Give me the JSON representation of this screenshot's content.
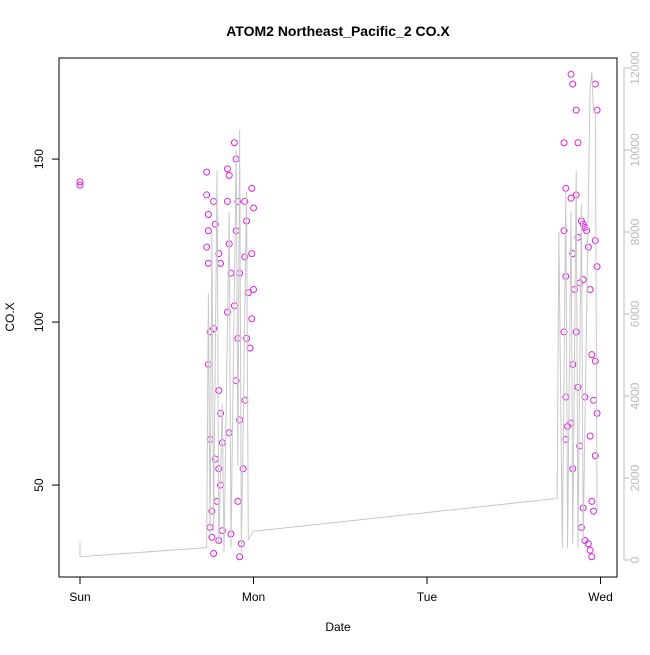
{
  "chart_data": {
    "type": "scatter",
    "title": "ATOM2 Northeast_Pacific_2 CO.X",
    "x_label": "Date",
    "y_label": "CO.X",
    "xlim": [
      -0.121,
      3.095
    ],
    "xticks": [
      {
        "value": 0,
        "label": "Sun"
      },
      {
        "value": 1,
        "label": "Mon"
      },
      {
        "value": 2,
        "label": "Tue"
      },
      {
        "value": 3,
        "label": "Wed"
      }
    ],
    "ylim": [
      21.8,
      181
    ],
    "yticks": [
      50,
      100,
      150
    ],
    "y2lim": [
      -415,
      12244
    ],
    "y2ticks": [
      0,
      2000,
      4000,
      6000,
      8000,
      10000,
      12000
    ],
    "y2_color": "#bbbbbb",
    "series": [
      {
        "type": "scatter",
        "color": "#e020e0",
        "x": [
          0,
          0,
          0.73,
          0.73,
          0.74,
          0.74,
          0.73,
          0.74,
          0.75,
          0.74,
          0.75,
          0.76,
          0.75,
          0.76,
          0.77,
          0.78,
          0.77,
          0.78,
          0.79,
          0.77,
          0.8,
          0.81,
          0.8,
          0.81,
          0.82,
          0.8,
          0.81,
          0.82,
          0.8,
          0.85,
          0.86,
          0.85,
          0.86,
          0.87,
          0.85,
          0.86,
          0.87,
          0.89,
          0.9,
          0.91,
          0.9,
          0.92,
          0.89,
          0.91,
          0.9,
          0.92,
          0.91,
          0.93,
          0.92,
          0.95,
          0.96,
          0.95,
          0.97,
          0.96,
          0.95,
          0.94,
          0.99,
          1.0,
          0.99,
          1.0,
          0.99,
          0.98,
          2.79,
          2.8,
          2.79,
          2.8,
          2.79,
          2.8,
          2.81,
          2.8,
          2.83,
          2.84,
          2.83,
          2.84,
          2.85,
          2.84,
          2.83,
          2.84,
          2.86,
          2.87,
          2.86,
          2.87,
          2.88,
          2.86,
          2.87,
          2.88,
          2.89,
          2.9,
          2.91,
          2.92,
          2.9,
          2.91,
          2.9,
          2.89,
          2.91,
          2.93,
          2.94,
          2.95,
          2.94,
          2.95,
          2.93,
          2.94,
          2.95,
          2.97,
          2.98,
          2.97,
          2.98,
          2.97,
          2.96,
          2.98,
          2.97,
          2.96
        ],
        "values": [
          143,
          142,
          146,
          139,
          133,
          128,
          123,
          118,
          97,
          87,
          64,
          42,
          37,
          34,
          137,
          130,
          98,
          58,
          45,
          29,
          121,
          118,
          79,
          72,
          63,
          55,
          50,
          36,
          33,
          147,
          145,
          137,
          124,
          115,
          103,
          66,
          35,
          155,
          150,
          137,
          128,
          115,
          105,
          95,
          82,
          70,
          45,
          32,
          28,
          137,
          131,
          120,
          109,
          95,
          76,
          55,
          141,
          135,
          121,
          110,
          101,
          92,
          155,
          141,
          128,
          114,
          97,
          77,
          68,
          64,
          176,
          173,
          138,
          121,
          110,
          87,
          69,
          55,
          165,
          155,
          139,
          126,
          112,
          97,
          80,
          62,
          131,
          130,
          129,
          128,
          113,
          77,
          43,
          37,
          33,
          123,
          110,
          90,
          65,
          45,
          32,
          30,
          28,
          173,
          165,
          125,
          117,
          88,
          76,
          72,
          59,
          42
        ]
      },
      {
        "type": "line",
        "axis": "y2",
        "color": "#c8c8c8",
        "x": [
          0,
          0,
          0.73,
          0.74,
          0.75,
          0.76,
          0.77,
          0.79,
          0.8,
          0.82,
          0.83,
          0.86,
          0.87,
          0.9,
          0.91,
          0.92,
          0.93,
          0.96,
          0.97,
          1.0,
          2.75,
          2.76,
          2.78,
          2.8,
          2.81,
          2.83,
          2.84,
          2.86,
          2.87,
          2.89,
          2.9,
          2.94,
          2.95,
          2.96,
          2.97,
          2.98
        ],
        "values": [
          450,
          80,
          300,
          6500,
          500,
          8000,
          700,
          9500,
          400,
          3800,
          200,
          8500,
          300,
          10000,
          2300,
          10500,
          200,
          9000,
          500,
          700,
          1500,
          8000,
          300,
          9000,
          300,
          8500,
          400,
          9500,
          300,
          8700,
          500,
          11500,
          11900,
          10900,
          11000,
          1200
        ]
      }
    ]
  }
}
